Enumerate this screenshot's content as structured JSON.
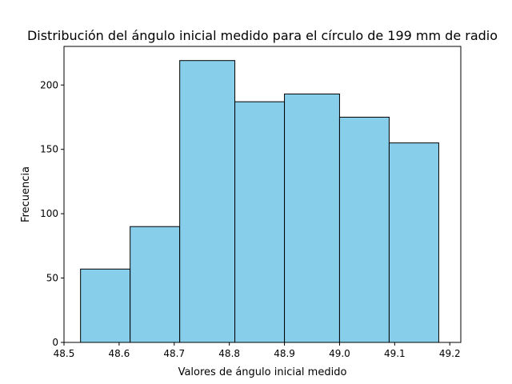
{
  "chart_data": {
    "type": "histogram",
    "title": "Distribución del ángulo inicial medido para el círculo de 199 mm de radio",
    "xlabel": "Valores de ángulo inicial medido",
    "ylabel": "Frecuencia",
    "xlim": [
      48.5,
      49.22
    ],
    "ylim": [
      0,
      230
    ],
    "xticks": [
      "48.5",
      "48.6",
      "48.7",
      "48.8",
      "48.9",
      "49.0",
      "49.1",
      "49.2"
    ],
    "xtick_values": [
      48.5,
      48.6,
      48.7,
      48.8,
      48.9,
      49.0,
      49.1,
      49.2
    ],
    "yticks": [
      "0",
      "50",
      "100",
      "150",
      "200"
    ],
    "ytick_values": [
      0,
      50,
      100,
      150,
      200
    ],
    "bins": [
      {
        "x0": 48.53,
        "x1": 48.62,
        "value": 57
      },
      {
        "x0": 48.62,
        "x1": 48.71,
        "value": 90
      },
      {
        "x0": 48.71,
        "x1": 48.81,
        "value": 219
      },
      {
        "x0": 48.81,
        "x1": 48.9,
        "value": 187
      },
      {
        "x0": 48.9,
        "x1": 49.0,
        "value": 193
      },
      {
        "x0": 49.0,
        "x1": 49.09,
        "value": 175
      },
      {
        "x0": 49.09,
        "x1": 49.18,
        "value": 155
      }
    ],
    "bar_color": "#87ceeb",
    "edge_color": "#000000",
    "grid": false,
    "legend": "none"
  }
}
